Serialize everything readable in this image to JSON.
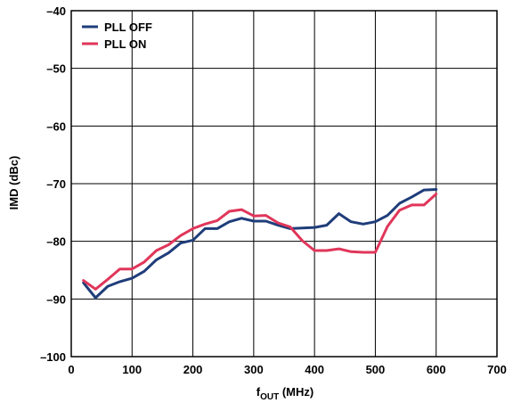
{
  "chart_data": {
    "type": "line",
    "title": "",
    "xlabel_main": "f",
    "xlabel_sub": "OUT",
    "xlabel_unit": " (MHz)",
    "ylabel": "IMD (dBc)",
    "xlim": [
      0,
      700
    ],
    "ylim": [
      -100,
      -40
    ],
    "x_ticks": [
      0,
      100,
      200,
      300,
      400,
      500,
      600,
      700
    ],
    "x_tick_labels": [
      "0",
      "100",
      "200",
      "300",
      "400",
      "500",
      "600",
      "700"
    ],
    "y_ticks": [
      -40,
      -50,
      -60,
      -70,
      -80,
      -90,
      -100
    ],
    "y_tick_labels": [
      "–40",
      "–50",
      "–60",
      "–70",
      "–80",
      "–90",
      "–100"
    ],
    "grid": true,
    "legend_position": "top-left",
    "series": [
      {
        "name": "PLL OFF",
        "color": "#1f3d7a",
        "x": [
          20,
          40,
          60,
          80,
          100,
          120,
          140,
          160,
          180,
          200,
          220,
          240,
          260,
          280,
          300,
          320,
          340,
          360,
          380,
          400,
          420,
          440,
          460,
          480,
          500,
          520,
          540,
          560,
          580,
          600
        ],
        "y": [
          -87.2,
          -89.8,
          -87.8,
          -87.0,
          -86.4,
          -85.2,
          -83.2,
          -82.0,
          -80.3,
          -79.8,
          -77.8,
          -77.8,
          -76.6,
          -76.0,
          -76.5,
          -76.5,
          -77.2,
          -77.8,
          -77.7,
          -77.6,
          -77.2,
          -75.2,
          -76.6,
          -77.0,
          -76.6,
          -75.5,
          -73.4,
          -72.3,
          -71.1,
          -71.0
        ]
      },
      {
        "name": "PLL ON",
        "color": "#e0365a",
        "x": [
          20,
          40,
          60,
          80,
          100,
          120,
          140,
          160,
          180,
          200,
          220,
          240,
          260,
          280,
          300,
          320,
          340,
          360,
          380,
          400,
          420,
          440,
          460,
          480,
          500,
          520,
          540,
          560,
          580,
          600
        ],
        "y": [
          -86.8,
          -88.3,
          -86.6,
          -84.8,
          -84.8,
          -83.6,
          -81.6,
          -80.6,
          -79.0,
          -77.8,
          -77.0,
          -76.4,
          -74.8,
          -74.5,
          -75.6,
          -75.5,
          -76.8,
          -77.5,
          -79.9,
          -81.6,
          -81.6,
          -81.3,
          -81.8,
          -81.9,
          -81.9,
          -77.4,
          -74.6,
          -73.7,
          -73.7,
          -71.8
        ]
      }
    ]
  }
}
